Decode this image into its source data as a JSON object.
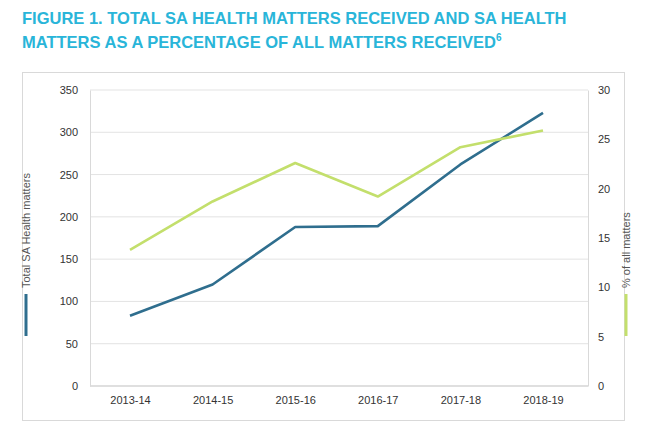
{
  "chart_data": {
    "type": "line",
    "title": "FIGURE 1. TOTAL SA HEALTH MATTERS RECEIVED AND SA HEALTH MATTERS AS A PERCENTAGE OF ALL MATTERS RECEIVED",
    "title_footnote": "6",
    "categories": [
      "2013-14",
      "2014-15",
      "2015-16",
      "2016-17",
      "2017-18",
      "2018-19"
    ],
    "series": [
      {
        "name": "Total SA Health matters",
        "color": "#2f6e8e",
        "values": [
          83,
          120,
          188,
          189,
          262,
          323
        ]
      },
      {
        "name": "% of all matters",
        "color": "#c3df6c",
        "axis": "y2",
        "values": [
          13.8,
          18.7,
          22.6,
          19.2,
          24.2,
          25.9
        ]
      }
    ],
    "ylim": [
      0,
      350
    ],
    "yticks": [
      0,
      50,
      100,
      150,
      200,
      250,
      300,
      350
    ],
    "y2lim": [
      0,
      30
    ],
    "y2ticks": [
      0,
      5,
      10,
      15,
      20,
      25,
      30
    ],
    "grid": true
  }
}
